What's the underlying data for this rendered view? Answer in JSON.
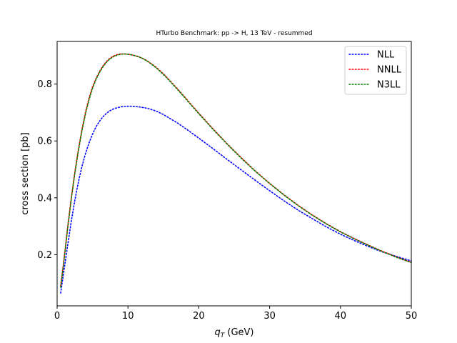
{
  "chart_data": {
    "type": "line",
    "title": "HTurbo Benchmark: pp -> H, 13 TeV - resummed",
    "xlabel_main": "q",
    "xlabel_sub": "T",
    "xlabel_unit": " (GeV)",
    "ylabel": "cross section [pb]",
    "xlim": [
      0,
      50
    ],
    "ylim": [
      0.02,
      0.95
    ],
    "xticks": [
      0,
      10,
      20,
      30,
      40,
      50
    ],
    "yticks": [
      0.2,
      0.4,
      0.6,
      0.8
    ],
    "grid": false,
    "legend_position": "top-right",
    "line_style": "dotted",
    "x": [
      0.5,
      1,
      1.5,
      2,
      2.5,
      3,
      3.5,
      4,
      4.5,
      5,
      5.5,
      6,
      6.5,
      7,
      7.5,
      8,
      8.5,
      9,
      9.5,
      10,
      10.5,
      11,
      11.5,
      12,
      12.5,
      13,
      14,
      15,
      16,
      17,
      18,
      19,
      20,
      22,
      24,
      26,
      28,
      30,
      32,
      34,
      36,
      38,
      40,
      42,
      44,
      46,
      48,
      50
    ],
    "series": [
      {
        "name": "NLL",
        "color": "#0000ff",
        "values": [
          0.065,
          0.15,
          0.235,
          0.318,
          0.391,
          0.455,
          0.51,
          0.555,
          0.593,
          0.624,
          0.65,
          0.67,
          0.686,
          0.698,
          0.707,
          0.713,
          0.717,
          0.72,
          0.721,
          0.722,
          0.722,
          0.721,
          0.72,
          0.718,
          0.716,
          0.713,
          0.705,
          0.693,
          0.678,
          0.663,
          0.646,
          0.628,
          0.61,
          0.573,
          0.535,
          0.498,
          0.461,
          0.425,
          0.39,
          0.357,
          0.327,
          0.298,
          0.272,
          0.249,
          0.228,
          0.209,
          0.193,
          0.178
        ]
      },
      {
        "name": "NNLL",
        "color": "#ff0000",
        "values": [
          0.09,
          0.19,
          0.3,
          0.4,
          0.49,
          0.57,
          0.64,
          0.7,
          0.75,
          0.79,
          0.82,
          0.845,
          0.865,
          0.88,
          0.892,
          0.899,
          0.904,
          0.906,
          0.906,
          0.905,
          0.903,
          0.9,
          0.896,
          0.891,
          0.885,
          0.877,
          0.859,
          0.836,
          0.81,
          0.783,
          0.755,
          0.726,
          0.698,
          0.643,
          0.59,
          0.541,
          0.494,
          0.451,
          0.411,
          0.374,
          0.34,
          0.309,
          0.281,
          0.256,
          0.233,
          0.211,
          0.191,
          0.173
        ]
      },
      {
        "name": "N3LL",
        "color": "#008000",
        "values": [
          0.085,
          0.185,
          0.295,
          0.395,
          0.485,
          0.565,
          0.635,
          0.695,
          0.745,
          0.785,
          0.817,
          0.842,
          0.862,
          0.878,
          0.889,
          0.897,
          0.902,
          0.905,
          0.906,
          0.905,
          0.903,
          0.9,
          0.896,
          0.891,
          0.884,
          0.876,
          0.857,
          0.834,
          0.808,
          0.781,
          0.753,
          0.724,
          0.696,
          0.641,
          0.589,
          0.539,
          0.493,
          0.45,
          0.41,
          0.373,
          0.339,
          0.308,
          0.28,
          0.255,
          0.232,
          0.21,
          0.19,
          0.172
        ]
      }
    ]
  }
}
